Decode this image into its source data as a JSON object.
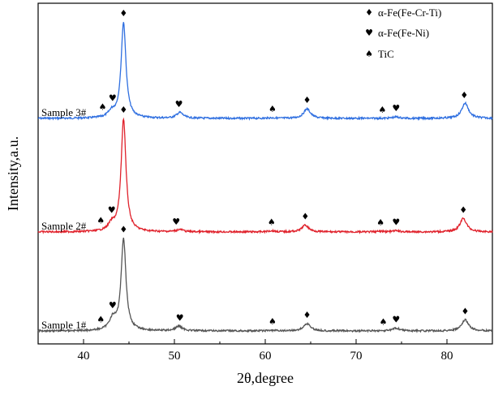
{
  "chart_data": {
    "type": "line",
    "xlabel": "2θ,degree",
    "ylabel": "Intensity,a.u.",
    "xlim": [
      35,
      85
    ],
    "x_ticks": [
      40,
      50,
      60,
      70,
      80
    ],
    "tick_labels": [
      "40",
      "50",
      "60",
      "70",
      "80"
    ],
    "grid": false,
    "legend_position": "top-right",
    "phases": [
      {
        "key": "alpha_crti",
        "symbol": "♦",
        "label": "α-Fe(Fe-Cr-Ti)"
      },
      {
        "key": "alpha_ni",
        "symbol": "♥",
        "label": "α-Fe(Fe-Ni)"
      },
      {
        "key": "tic",
        "symbol": "♠",
        "label": "TiC"
      }
    ],
    "series": [
      {
        "name": "Sample 3#",
        "color": "#2f6fe0",
        "peaks": [
          [
            43.1,
            0.06
          ],
          [
            44.4,
            1.0
          ],
          [
            50.6,
            0.06
          ],
          [
            60.7,
            0.005
          ],
          [
            64.6,
            0.1
          ],
          [
            74.4,
            0.015
          ],
          [
            82.0,
            0.16
          ]
        ],
        "markers": [
          {
            "x": 42.1,
            "phase": "tic"
          },
          {
            "x": 43.2,
            "phase": "alpha_ni"
          },
          {
            "x": 44.4,
            "phase": "alpha_crti"
          },
          {
            "x": 50.5,
            "phase": "alpha_ni"
          },
          {
            "x": 60.8,
            "phase": "tic"
          },
          {
            "x": 64.6,
            "phase": "alpha_crti"
          },
          {
            "x": 72.9,
            "phase": "tic"
          },
          {
            "x": 74.4,
            "phase": "alpha_ni"
          },
          {
            "x": 81.9,
            "phase": "alpha_crti"
          }
        ]
      },
      {
        "name": "Sample 2#",
        "color": "#e0212b",
        "peaks": [
          [
            43.1,
            0.06
          ],
          [
            44.4,
            1.0
          ],
          [
            50.6,
            0.02
          ],
          [
            60.7,
            0.01
          ],
          [
            64.4,
            0.06
          ],
          [
            72.7,
            0.005
          ],
          [
            74.4,
            0.01
          ],
          [
            81.8,
            0.12
          ]
        ],
        "markers": [
          {
            "x": 41.9,
            "phase": "tic"
          },
          {
            "x": 43.1,
            "phase": "alpha_ni"
          },
          {
            "x": 44.4,
            "phase": "alpha_crti"
          },
          {
            "x": 50.2,
            "phase": "alpha_ni"
          },
          {
            "x": 60.7,
            "phase": "tic"
          },
          {
            "x": 64.4,
            "phase": "alpha_crti"
          },
          {
            "x": 72.7,
            "phase": "tic"
          },
          {
            "x": 74.4,
            "phase": "alpha_ni"
          },
          {
            "x": 81.8,
            "phase": "alpha_crti"
          }
        ]
      },
      {
        "name": "Sample 1#",
        "color": "#555555",
        "peaks": [
          [
            43.2,
            0.12
          ],
          [
            44.4,
            1.0
          ],
          [
            50.5,
            0.05
          ],
          [
            60.8,
            0.005
          ],
          [
            64.6,
            0.08
          ],
          [
            74.4,
            0.03
          ],
          [
            82.0,
            0.12
          ]
        ],
        "markers": [
          {
            "x": 41.9,
            "phase": "tic"
          },
          {
            "x": 43.2,
            "phase": "alpha_ni"
          },
          {
            "x": 44.4,
            "phase": "alpha_crti"
          },
          {
            "x": 50.6,
            "phase": "alpha_ni"
          },
          {
            "x": 60.8,
            "phase": "tic"
          },
          {
            "x": 64.6,
            "phase": "alpha_crti"
          },
          {
            "x": 73.0,
            "phase": "tic"
          },
          {
            "x": 74.4,
            "phase": "alpha_ni"
          },
          {
            "x": 82.0,
            "phase": "alpha_crti"
          }
        ]
      }
    ]
  }
}
